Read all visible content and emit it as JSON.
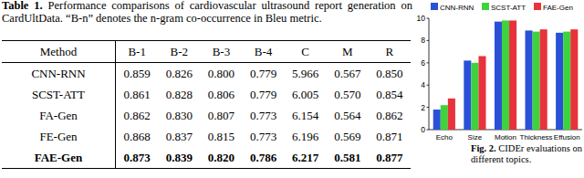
{
  "table_caption": {
    "label": "Table 1.",
    "text": "Performance comparisons of cardiovascular ultrasound report generation on CardUltData. “B-n” denotes the n-gram co-occurrence in Bleu metric."
  },
  "table": {
    "header": [
      "Method",
      "B-1",
      "B-2",
      "B-3",
      "B-4",
      "C",
      "M",
      "R"
    ],
    "rows": [
      [
        "CNN-RNN",
        "0.859",
        "0.826",
        "0.800",
        "0.779",
        "5.966",
        "0.567",
        "0.850"
      ],
      [
        "SCST-ATT",
        "0.861",
        "0.828",
        "0.806",
        "0.779",
        "6.005",
        "0.570",
        "0.854"
      ],
      [
        "FA-Gen",
        "0.862",
        "0.830",
        "0.807",
        "0.773",
        "6.154",
        "0.564",
        "0.862"
      ],
      [
        "FE-Gen",
        "0.868",
        "0.837",
        "0.815",
        "0.773",
        "6.196",
        "0.569",
        "0.871"
      ],
      [
        "FAE-Gen",
        "0.873",
        "0.839",
        "0.820",
        "0.786",
        "6.217",
        "0.581",
        "0.877"
      ]
    ]
  },
  "chart_data": {
    "type": "bar",
    "categories": [
      "Echo",
      "Size",
      "Motion",
      "Thickness",
      "Effusion"
    ],
    "series": [
      {
        "name": "CNN-RNN",
        "color": "#2b50d8",
        "values": [
          1.8,
          6.2,
          9.7,
          8.9,
          8.7
        ]
      },
      {
        "name": "SCST-ATT",
        "color": "#3fd23f",
        "values": [
          2.2,
          6.0,
          9.8,
          8.8,
          8.8
        ]
      },
      {
        "name": "FAE-Gen",
        "color": "#e8323c",
        "values": [
          2.8,
          6.6,
          9.8,
          9.0,
          9.0
        ]
      }
    ],
    "ylim": [
      0,
      10
    ],
    "yticks": [
      0,
      2,
      4,
      6,
      8,
      10
    ],
    "legend": "top"
  },
  "figure_caption": {
    "label": "Fig. 2.",
    "text": "CIDEr evaluations on different topics."
  }
}
